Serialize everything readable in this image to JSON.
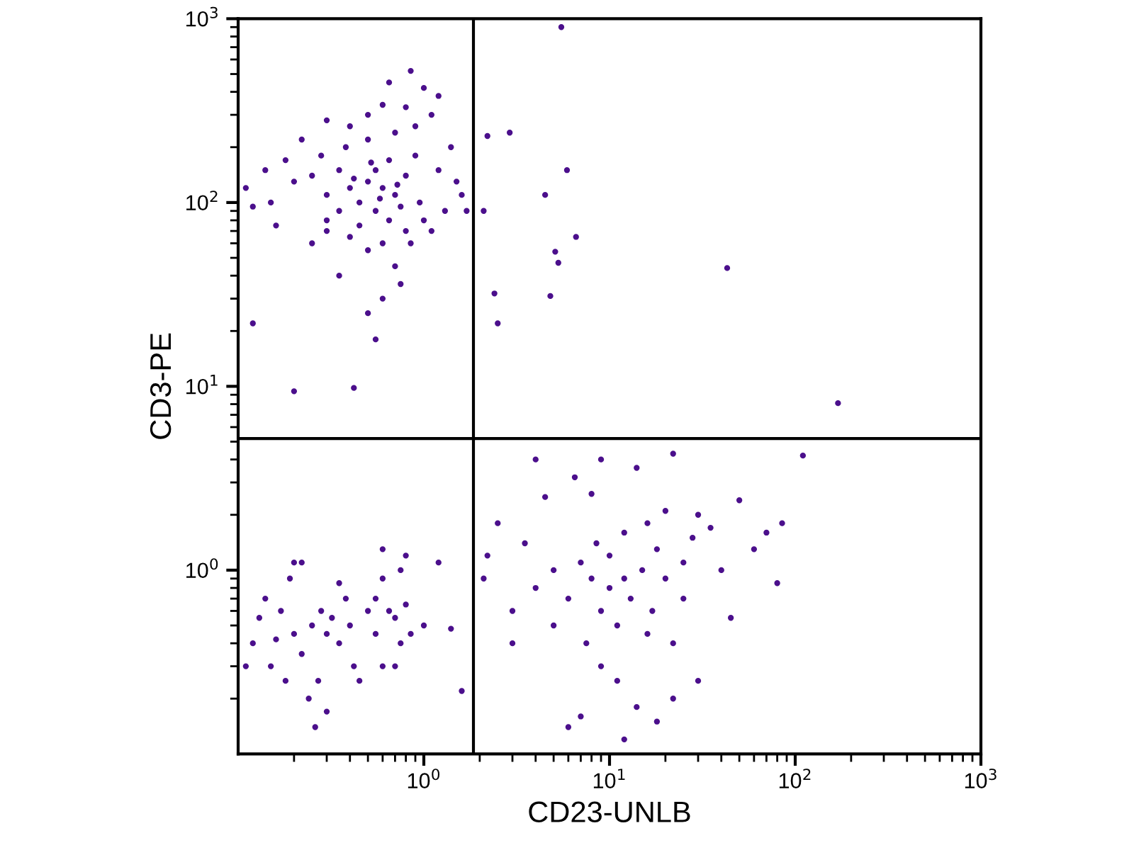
{
  "chart_data": {
    "type": "scatter",
    "xlabel": "CD23-UNLB",
    "ylabel": "CD3-PE",
    "log": "xy",
    "xlim": [
      0.1,
      1000
    ],
    "ylim": [
      0.1,
      1000
    ],
    "xticks": [
      {
        "value": 1,
        "label": "10$^{0}$"
      },
      {
        "value": 10,
        "label": "10$^{1}$"
      },
      {
        "value": 100,
        "label": "10$^{2}$"
      },
      {
        "value": 1000,
        "label": "10$^{3}$"
      }
    ],
    "yticks": [
      {
        "value": 1,
        "label": "10$^{0}$"
      },
      {
        "value": 10,
        "label": "10$^{1}$"
      },
      {
        "value": 100,
        "label": "10$^{2}$"
      },
      {
        "value": 1000,
        "label": "10$^{3}$"
      }
    ],
    "grid": false,
    "marker": "circle",
    "ref_lines": [
      {
        "axis": "x",
        "value": 1.85,
        "color": "#000000"
      },
      {
        "axis": "y",
        "value": 5.2,
        "color": "#000000"
      }
    ],
    "series": [
      {
        "color": "#4b0f8c",
        "x": [
          0.6,
          0.5,
          0.7,
          0.55,
          0.45,
          0.65,
          0.8,
          0.4,
          0.35,
          0.3,
          0.25,
          0.2,
          0.15,
          0.12,
          0.11,
          0.18,
          0.28,
          0.38,
          0.5,
          0.7,
          0.9,
          1.1,
          1.2,
          1.0,
          0.85,
          0.6,
          0.4,
          0.22,
          0.14,
          0.9,
          1.2,
          1.5,
          1.6,
          1.3,
          1.0,
          0.8,
          0.6,
          0.5,
          0.4,
          0.3,
          0.25,
          0.7,
          0.75,
          0.6,
          0.5,
          0.55,
          0.42,
          0.2,
          0.12,
          0.35,
          0.95,
          0.55,
          0.65,
          0.45,
          0.75,
          0.35,
          0.3,
          0.85,
          1.1,
          1.4,
          1.7,
          0.16,
          0.8,
          0.3,
          0.65,
          0.5,
          0.42,
          0.58,
          0.72,
          0.52,
          5.5,
          2.2,
          2.9,
          5.9,
          4.5,
          2.1,
          6.6,
          5.1,
          5.3,
          43,
          2.4,
          4.8,
          2.5,
          170,
          0.12,
          0.13,
          0.15,
          0.17,
          0.19,
          0.2,
          0.22,
          0.2,
          0.22,
          0.25,
          0.18,
          0.24,
          0.26,
          0.27,
          0.28,
          0.3,
          0.32,
          0.35,
          0.38,
          0.4,
          0.42,
          0.45,
          0.5,
          0.55,
          0.6,
          0.6,
          0.65,
          0.7,
          0.75,
          0.8,
          0.75,
          0.85,
          1.0,
          1.2,
          0.6,
          0.7,
          0.35,
          0.14,
          0.11,
          0.16,
          0.3,
          1.4,
          1.6,
          0.8,
          0.55,
          2.1,
          2.2,
          2.5,
          3,
          3.5,
          4,
          4.5,
          5,
          5,
          6,
          6.5,
          7,
          7.5,
          8,
          8.5,
          8,
          9,
          9,
          10,
          10,
          11,
          11,
          12,
          12,
          13,
          14,
          14,
          15,
          16,
          16,
          17,
          18,
          18,
          20,
          20,
          22,
          22,
          25,
          25,
          28,
          30,
          30,
          35,
          40,
          45,
          50,
          60,
          70,
          80,
          85,
          110,
          6,
          7,
          4,
          12,
          22,
          3,
          9
        ],
        "values": [
          120,
          130,
          110,
          150,
          100,
          170,
          140,
          120,
          90,
          110,
          140,
          130,
          100,
          95,
          120,
          170,
          180,
          200,
          220,
          240,
          260,
          300,
          380,
          420,
          520,
          340,
          260,
          220,
          150,
          180,
          150,
          130,
          110,
          90,
          80,
          70,
          60,
          55,
          65,
          70,
          60,
          45,
          36,
          30,
          25,
          18,
          9.8,
          9.4,
          22,
          40,
          100,
          90,
          80,
          75,
          95,
          150,
          80,
          60,
          70,
          200,
          90,
          75,
          330,
          280,
          450,
          300,
          135,
          105,
          125,
          165,
          900,
          230,
          240,
          150,
          110,
          90,
          65,
          54,
          47,
          44,
          32,
          31,
          22,
          8.1,
          0.4,
          0.55,
          0.3,
          0.6,
          0.9,
          1.1,
          1.1,
          0.45,
          0.35,
          0.5,
          0.25,
          0.2,
          0.14,
          0.25,
          0.6,
          0.45,
          0.55,
          0.4,
          0.7,
          0.5,
          0.3,
          0.25,
          0.6,
          0.45,
          0.9,
          1.3,
          0.6,
          0.55,
          0.4,
          0.65,
          1.0,
          0.45,
          0.5,
          1.1,
          0.3,
          0.3,
          0.85,
          0.7,
          0.3,
          0.42,
          0.17,
          0.48,
          0.22,
          1.2,
          0.7,
          0.9,
          1.2,
          1.8,
          0.6,
          1.4,
          0.8,
          2.5,
          0.5,
          1.0,
          0.7,
          3.2,
          1.1,
          0.4,
          0.9,
          1.4,
          2.6,
          0.6,
          0.3,
          0.8,
          1.2,
          0.5,
          0.25,
          0.9,
          1.6,
          0.7,
          3.6,
          0.18,
          1.0,
          0.45,
          1.8,
          0.6,
          1.3,
          0.15,
          0.9,
          2.1,
          0.4,
          4.3,
          1.1,
          0.7,
          1.5,
          0.25,
          2.0,
          1.7,
          1.0,
          0.55,
          2.4,
          1.3,
          1.6,
          0.85,
          1.8,
          4.2,
          0.14,
          0.16,
          4.0,
          0.12,
          0.2,
          0.4,
          4.0
        ]
      }
    ]
  }
}
